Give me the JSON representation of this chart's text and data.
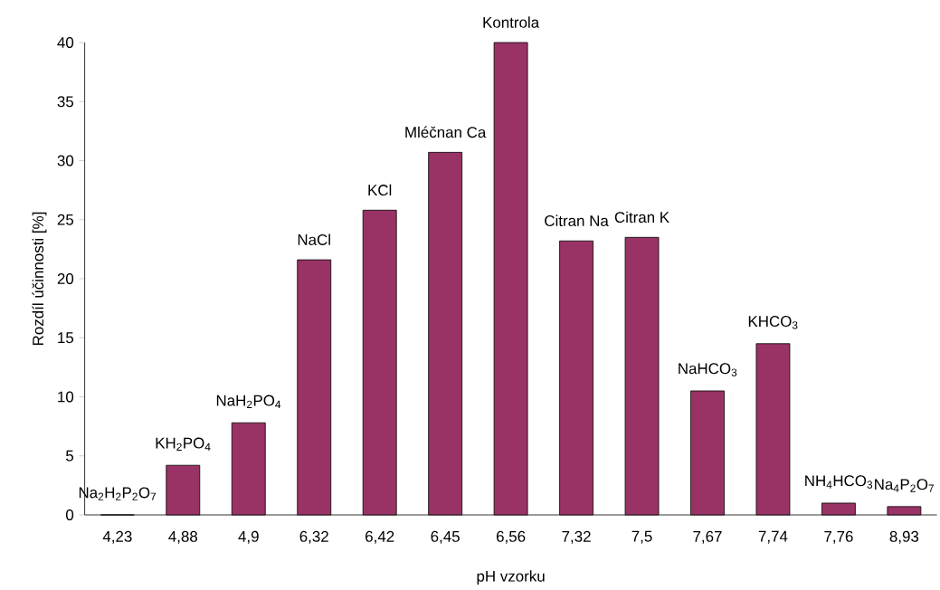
{
  "chart_data": {
    "type": "bar",
    "xlabel": "pH vzorku",
    "ylabel": "Rozdíl účinnosti [%]",
    "categories": [
      "4,23",
      "4,88",
      "4,9",
      "6,32",
      "6,42",
      "6,45",
      "6,56",
      "7,32",
      "7,5",
      "7,67",
      "7,74",
      "7,76",
      "8,93"
    ],
    "values": [
      0,
      4.2,
      7.8,
      21.6,
      25.8,
      30.7,
      40,
      23.2,
      23.5,
      10.5,
      14.5,
      1.0,
      0.7
    ],
    "color": "#993366",
    "ylim": [
      0,
      40
    ],
    "yticks": [
      0,
      5,
      10,
      15,
      20,
      25,
      30,
      35,
      40
    ],
    "grid": false,
    "annotations": [
      {
        "text": "Na$_{2}$H$_{2}$P$_{2}$O$_{7}$",
        "x": "4,23",
        "y": 0
      },
      {
        "text": "KH$_{2}$PO$_{4}$",
        "x": "4,88",
        "y": 4.2
      },
      {
        "text": "NaH$_{2}$PO$_{4}$",
        "x": "4,9",
        "y": 7.8
      },
      {
        "text": "NaCl",
        "x": "6,32",
        "y": 21.6
      },
      {
        "text": "KCl",
        "x": "6,42",
        "y": 25.8
      },
      {
        "text": "Mléčnan Ca",
        "x": "6,45",
        "y": 30.7
      },
      {
        "text": "Kontrola",
        "x": "6,56",
        "y": 40
      },
      {
        "text": "Citran Na",
        "x": "7,32",
        "y": 23.2
      },
      {
        "text": "Citran K",
        "x": "7,5",
        "y": 23.5
      },
      {
        "text": "NaHCO$_{3}$",
        "x": "7,67",
        "y": 10.5
      },
      {
        "text": "KHCO$_{3}$",
        "x": "7,74",
        "y": 14.5
      },
      {
        "text": "NH$_{4}$HCO$_{3}$",
        "x": "7,76",
        "y": 1.0
      },
      {
        "text": "Na$_{4}$P$_{2}$O$_{7}$",
        "x": "8,93",
        "y": 0.7
      }
    ]
  }
}
